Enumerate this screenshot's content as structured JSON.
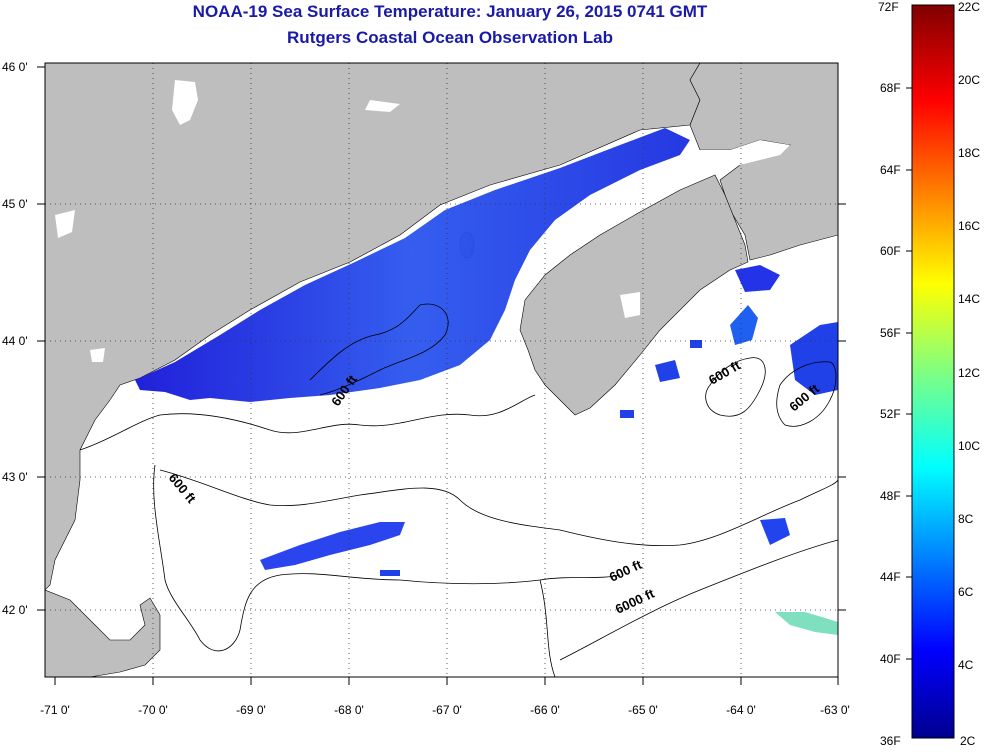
{
  "header": {
    "title": "NOAA-19 Sea Surface Temperature:  January 26, 2015 0741 GMT",
    "subtitle": "Rutgers Coastal Ocean Observation Lab"
  },
  "map": {
    "longitude_ticks": [
      "-71 0'",
      "-70 0'",
      "-69 0'",
      "-68 0'",
      "-67 0'",
      "-66 0'",
      "-65 0'",
      "-64 0'",
      "-63 0'"
    ],
    "latitude_ticks": [
      "46 0'",
      "45 0'",
      "44 0'",
      "43 0'",
      "42 0'"
    ],
    "contour_labels": [
      "600 ft",
      "600 ft",
      "600 ft",
      "600 ft",
      "600 ft",
      "6000 ft"
    ],
    "colors": {
      "land": "#bebebe",
      "ocean_nodata": "#ffffff"
    }
  },
  "colorbar": {
    "fahrenheit_labels": [
      "72F",
      "68F",
      "64F",
      "60F",
      "56F",
      "52F",
      "48F",
      "44F",
      "40F",
      "36F"
    ],
    "celsius_labels": [
      "22C",
      "20C",
      "18C",
      "16C",
      "14C",
      "12C",
      "10C",
      "8C",
      "6C",
      "4C",
      "2C"
    ]
  }
}
